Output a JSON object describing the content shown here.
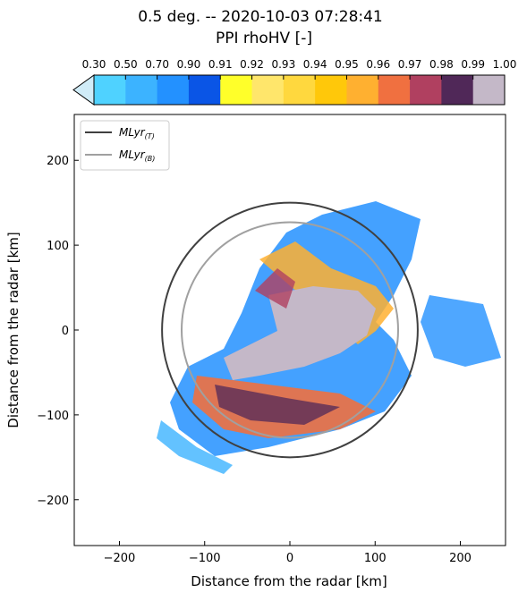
{
  "chart_data": {
    "type": "ppi",
    "title": "0.5 deg. -- 2020-10-03 07:28:41",
    "subtitle": "PPI rhoHV [-]",
    "xlabel": "Distance from the radar [km]",
    "ylabel": "Distance from the radar [km]",
    "xlim": [
      -253,
      253
    ],
    "ylim": [
      -254,
      254
    ],
    "xticks": [
      {
        "value": -200,
        "label": "−200"
      },
      {
        "value": -100,
        "label": "−100"
      },
      0,
      100,
      200
    ],
    "yticks": [
      {
        "value": -200,
        "label": "−200"
      },
      {
        "value": -100,
        "label": "−100"
      },
      0,
      100,
      200
    ],
    "colorbar": {
      "ticks": [
        {
          "value": 0.3,
          "label": "0.30"
        },
        {
          "value": 0.5,
          "label": "0.50"
        },
        {
          "value": 0.7,
          "label": "0.70"
        },
        {
          "value": 0.9,
          "label": "0.90"
        },
        0.91,
        0.92,
        0.93,
        0.94,
        0.95,
        0.96,
        0.97,
        0.98,
        0.99,
        {
          "value": 1.0,
          "label": "1.00"
        }
      ],
      "colors": [
        "#4fd2ff",
        "#3cb3ff",
        "#2391ff",
        "#0a55e6",
        "#ffff2a",
        "#ffe66b",
        "#ffd83e",
        "#ffc80a",
        "#ffb030",
        "#f07040",
        "#b04060",
        "#502858",
        "#c4b8c8"
      ],
      "extend_color": "#d0ecf8"
    },
    "series": [
      {
        "name": "MLyr",
        "subscript": "(T)",
        "color": "#404040",
        "radius": 150
      },
      {
        "name": "MLyr",
        "subscript": "(B)",
        "color": "#a0a0a0",
        "radius": 127
      }
    ]
  }
}
